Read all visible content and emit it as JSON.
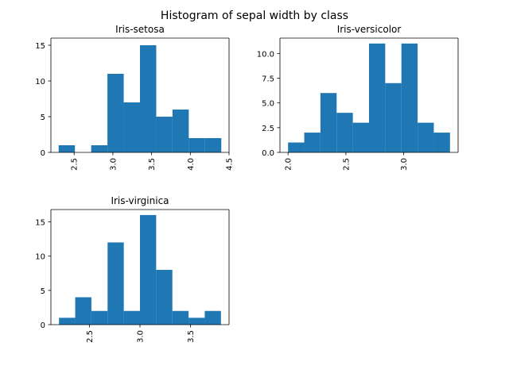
{
  "figure": {
    "title": "Histogram of sepal width by class"
  },
  "chart_data": [
    {
      "type": "bar",
      "title": "Iris-setosa",
      "xlabel": "",
      "ylabel": "",
      "bin_edges": [
        2.3,
        2.51,
        2.72,
        2.93,
        3.14,
        3.35,
        3.56,
        3.77,
        3.98,
        4.19,
        4.4
      ],
      "values": [
        1,
        0,
        1,
        11,
        7,
        15,
        5,
        6,
        2,
        2
      ],
      "xlim": [
        2.2,
        4.5
      ],
      "ylim": [
        0,
        16
      ],
      "xticks": [
        2.5,
        3.0,
        3.5,
        4.0,
        4.5
      ],
      "xtick_labels": [
        "2.5",
        "3.0",
        "3.5",
        "4.0",
        "4.5"
      ],
      "yticks": [
        0,
        5,
        10,
        15
      ],
      "ytick_labels": [
        "0",
        "5",
        "10",
        "15"
      ],
      "color": "#1f77b4",
      "grid": false
    },
    {
      "type": "bar",
      "title": "Iris-versicolor",
      "xlabel": "",
      "ylabel": "",
      "bin_edges": [
        2.0,
        2.14,
        2.28,
        2.42,
        2.56,
        2.7,
        2.84,
        2.98,
        3.12,
        3.26,
        3.4
      ],
      "values": [
        1,
        2,
        6,
        4,
        3,
        11,
        7,
        11,
        3,
        2
      ],
      "xlim": [
        1.93,
        3.47
      ],
      "ylim": [
        0,
        11.55
      ],
      "xticks": [
        2.0,
        2.5,
        3.0
      ],
      "xtick_labels": [
        "2.0",
        "2.5",
        "3.0"
      ],
      "yticks": [
        0,
        2.5,
        5.0,
        7.5,
        10.0
      ],
      "ytick_labels": [
        "0.0",
        "2.5",
        "5.0",
        "7.5",
        "10.0"
      ],
      "color": "#1f77b4",
      "grid": false
    },
    {
      "type": "bar",
      "title": "Iris-virginica",
      "xlabel": "",
      "ylabel": "",
      "bin_edges": [
        2.2,
        2.36,
        2.52,
        2.68,
        2.84,
        3.0,
        3.16,
        3.32,
        3.48,
        3.64,
        3.8
      ],
      "values": [
        1,
        4,
        2,
        12,
        2,
        16,
        8,
        2,
        1,
        2
      ],
      "xlim": [
        2.12,
        3.88
      ],
      "ylim": [
        0,
        16.8
      ],
      "xticks": [
        2.5,
        3.0,
        3.5
      ],
      "xtick_labels": [
        "2.5",
        "3.0",
        "3.5"
      ],
      "yticks": [
        0,
        5,
        10,
        15
      ],
      "ytick_labels": [
        "0",
        "5",
        "10",
        "15"
      ],
      "color": "#1f77b4",
      "grid": false
    }
  ]
}
